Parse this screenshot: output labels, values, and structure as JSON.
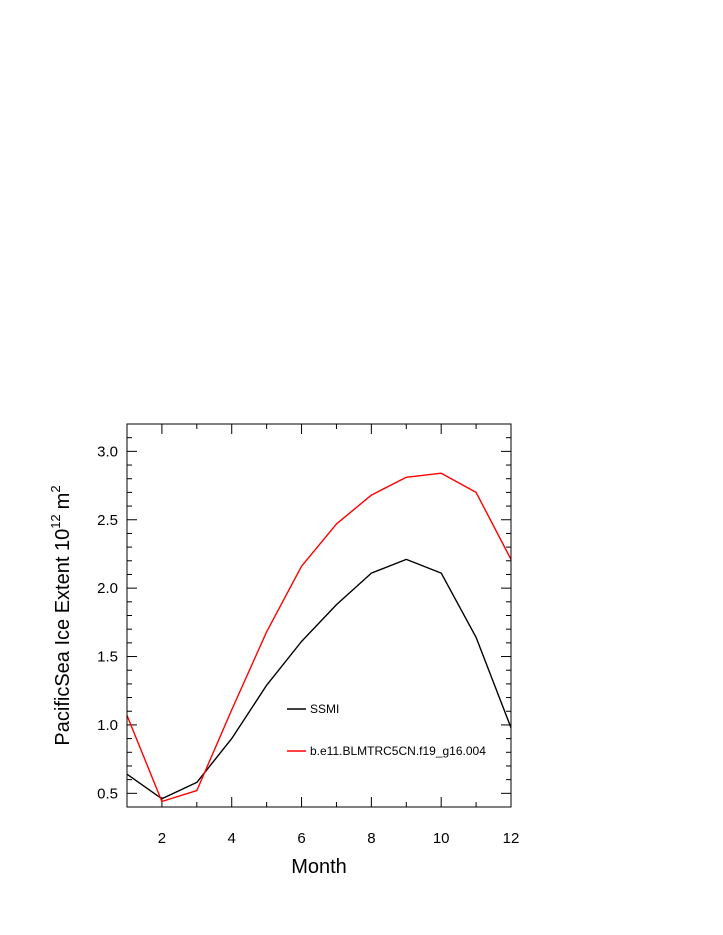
{
  "chart_data": {
    "type": "line",
    "xlabel": "Month",
    "ylabel": {
      "text": "PacificSea Ice Extent 10",
      "exponent": "12",
      "unit": "m",
      "unit_exponent": "2"
    },
    "xlim": [
      1,
      12
    ],
    "ylim": [
      0.4,
      3.2
    ],
    "xticks": [
      2,
      4,
      6,
      8,
      10,
      12
    ],
    "yticks": [
      0.5,
      1.0,
      1.5,
      2.0,
      2.5,
      3.0
    ],
    "ytick_labels": [
      "0.5",
      "1.0",
      "1.5",
      "2.0",
      "2.5",
      "3.0"
    ],
    "grid": false,
    "legend_position": "center-right",
    "x": [
      1,
      2,
      3,
      4,
      5,
      6,
      7,
      8,
      9,
      10,
      11,
      12
    ],
    "series": [
      {
        "name": "SSMI",
        "color": "#000000",
        "values": [
          0.64,
          0.46,
          0.58,
          0.9,
          1.29,
          1.61,
          1.88,
          2.11,
          2.21,
          2.11,
          1.64,
          0.98
        ]
      },
      {
        "name": "b.e11.BLMTRC5CN.f19_g16.004",
        "color": "#ff0000",
        "values": [
          1.07,
          0.44,
          0.52,
          1.11,
          1.68,
          2.16,
          2.47,
          2.68,
          2.81,
          2.84,
          2.7,
          2.21
        ]
      }
    ]
  }
}
